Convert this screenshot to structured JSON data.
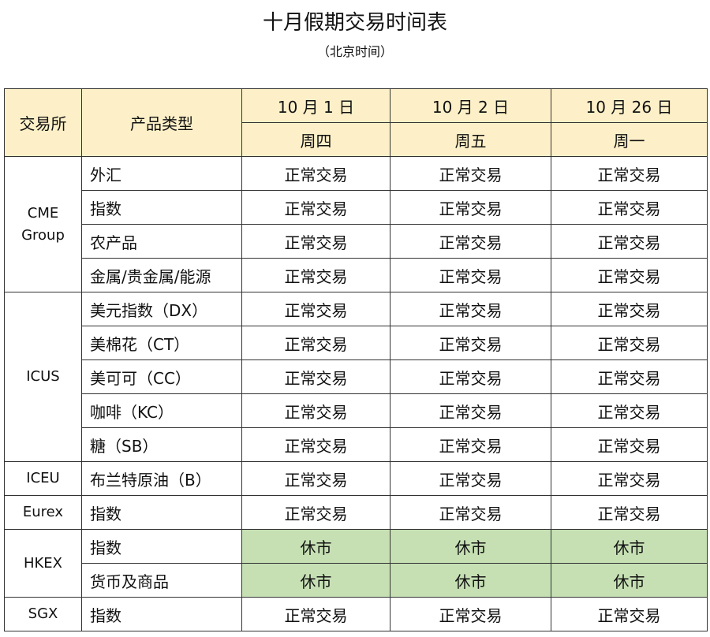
{
  "title": "十月假期交易时间表",
  "subtitle": "（北京时间）",
  "header": {
    "exchange": "交易所",
    "product": "产品类型",
    "dates": [
      {
        "date": "10 月 1 日",
        "weekday": "周四"
      },
      {
        "date": "10 月 2 日",
        "weekday": "周五"
      },
      {
        "date": "10 月 26 日",
        "weekday": "周一"
      }
    ]
  },
  "colors": {
    "header_bg": "#fdf0c8",
    "closed_bg": "#c6e0b4"
  },
  "groups": [
    {
      "exchange": "CME Group",
      "rows": [
        {
          "product": "外汇",
          "status": [
            "正常交易",
            "正常交易",
            "正常交易"
          ]
        },
        {
          "product": "指数",
          "status": [
            "正常交易",
            "正常交易",
            "正常交易"
          ]
        },
        {
          "product": "农产品",
          "status": [
            "正常交易",
            "正常交易",
            "正常交易"
          ]
        },
        {
          "product": "金属/贵金属/能源",
          "status": [
            "正常交易",
            "正常交易",
            "正常交易"
          ]
        }
      ]
    },
    {
      "exchange": "ICUS",
      "rows": [
        {
          "product": "美元指数（DX）",
          "status": [
            "正常交易",
            "正常交易",
            "正常交易"
          ]
        },
        {
          "product": "美棉花（CT）",
          "status": [
            "正常交易",
            "正常交易",
            "正常交易"
          ]
        },
        {
          "product": "美可可（CC）",
          "status": [
            "正常交易",
            "正常交易",
            "正常交易"
          ]
        },
        {
          "product": "咖啡（KC）",
          "status": [
            "正常交易",
            "正常交易",
            "正常交易"
          ]
        },
        {
          "product": "糖（SB）",
          "status": [
            "正常交易",
            "正常交易",
            "正常交易"
          ]
        }
      ]
    },
    {
      "exchange": "ICEU",
      "rows": [
        {
          "product": "布兰特原油（B）",
          "status": [
            "正常交易",
            "正常交易",
            "正常交易"
          ]
        }
      ]
    },
    {
      "exchange": "Eurex",
      "rows": [
        {
          "product": "指数",
          "status": [
            "正常交易",
            "正常交易",
            "正常交易"
          ]
        }
      ]
    },
    {
      "exchange": "HKEX",
      "rows": [
        {
          "product": "指数",
          "status": [
            "休市",
            "休市",
            "休市"
          ]
        },
        {
          "product": "货币及商品",
          "status": [
            "休市",
            "休市",
            "休市"
          ]
        }
      ]
    },
    {
      "exchange": "SGX",
      "rows": [
        {
          "product": "指数",
          "status": [
            "正常交易",
            "正常交易",
            "正常交易"
          ]
        }
      ]
    }
  ]
}
